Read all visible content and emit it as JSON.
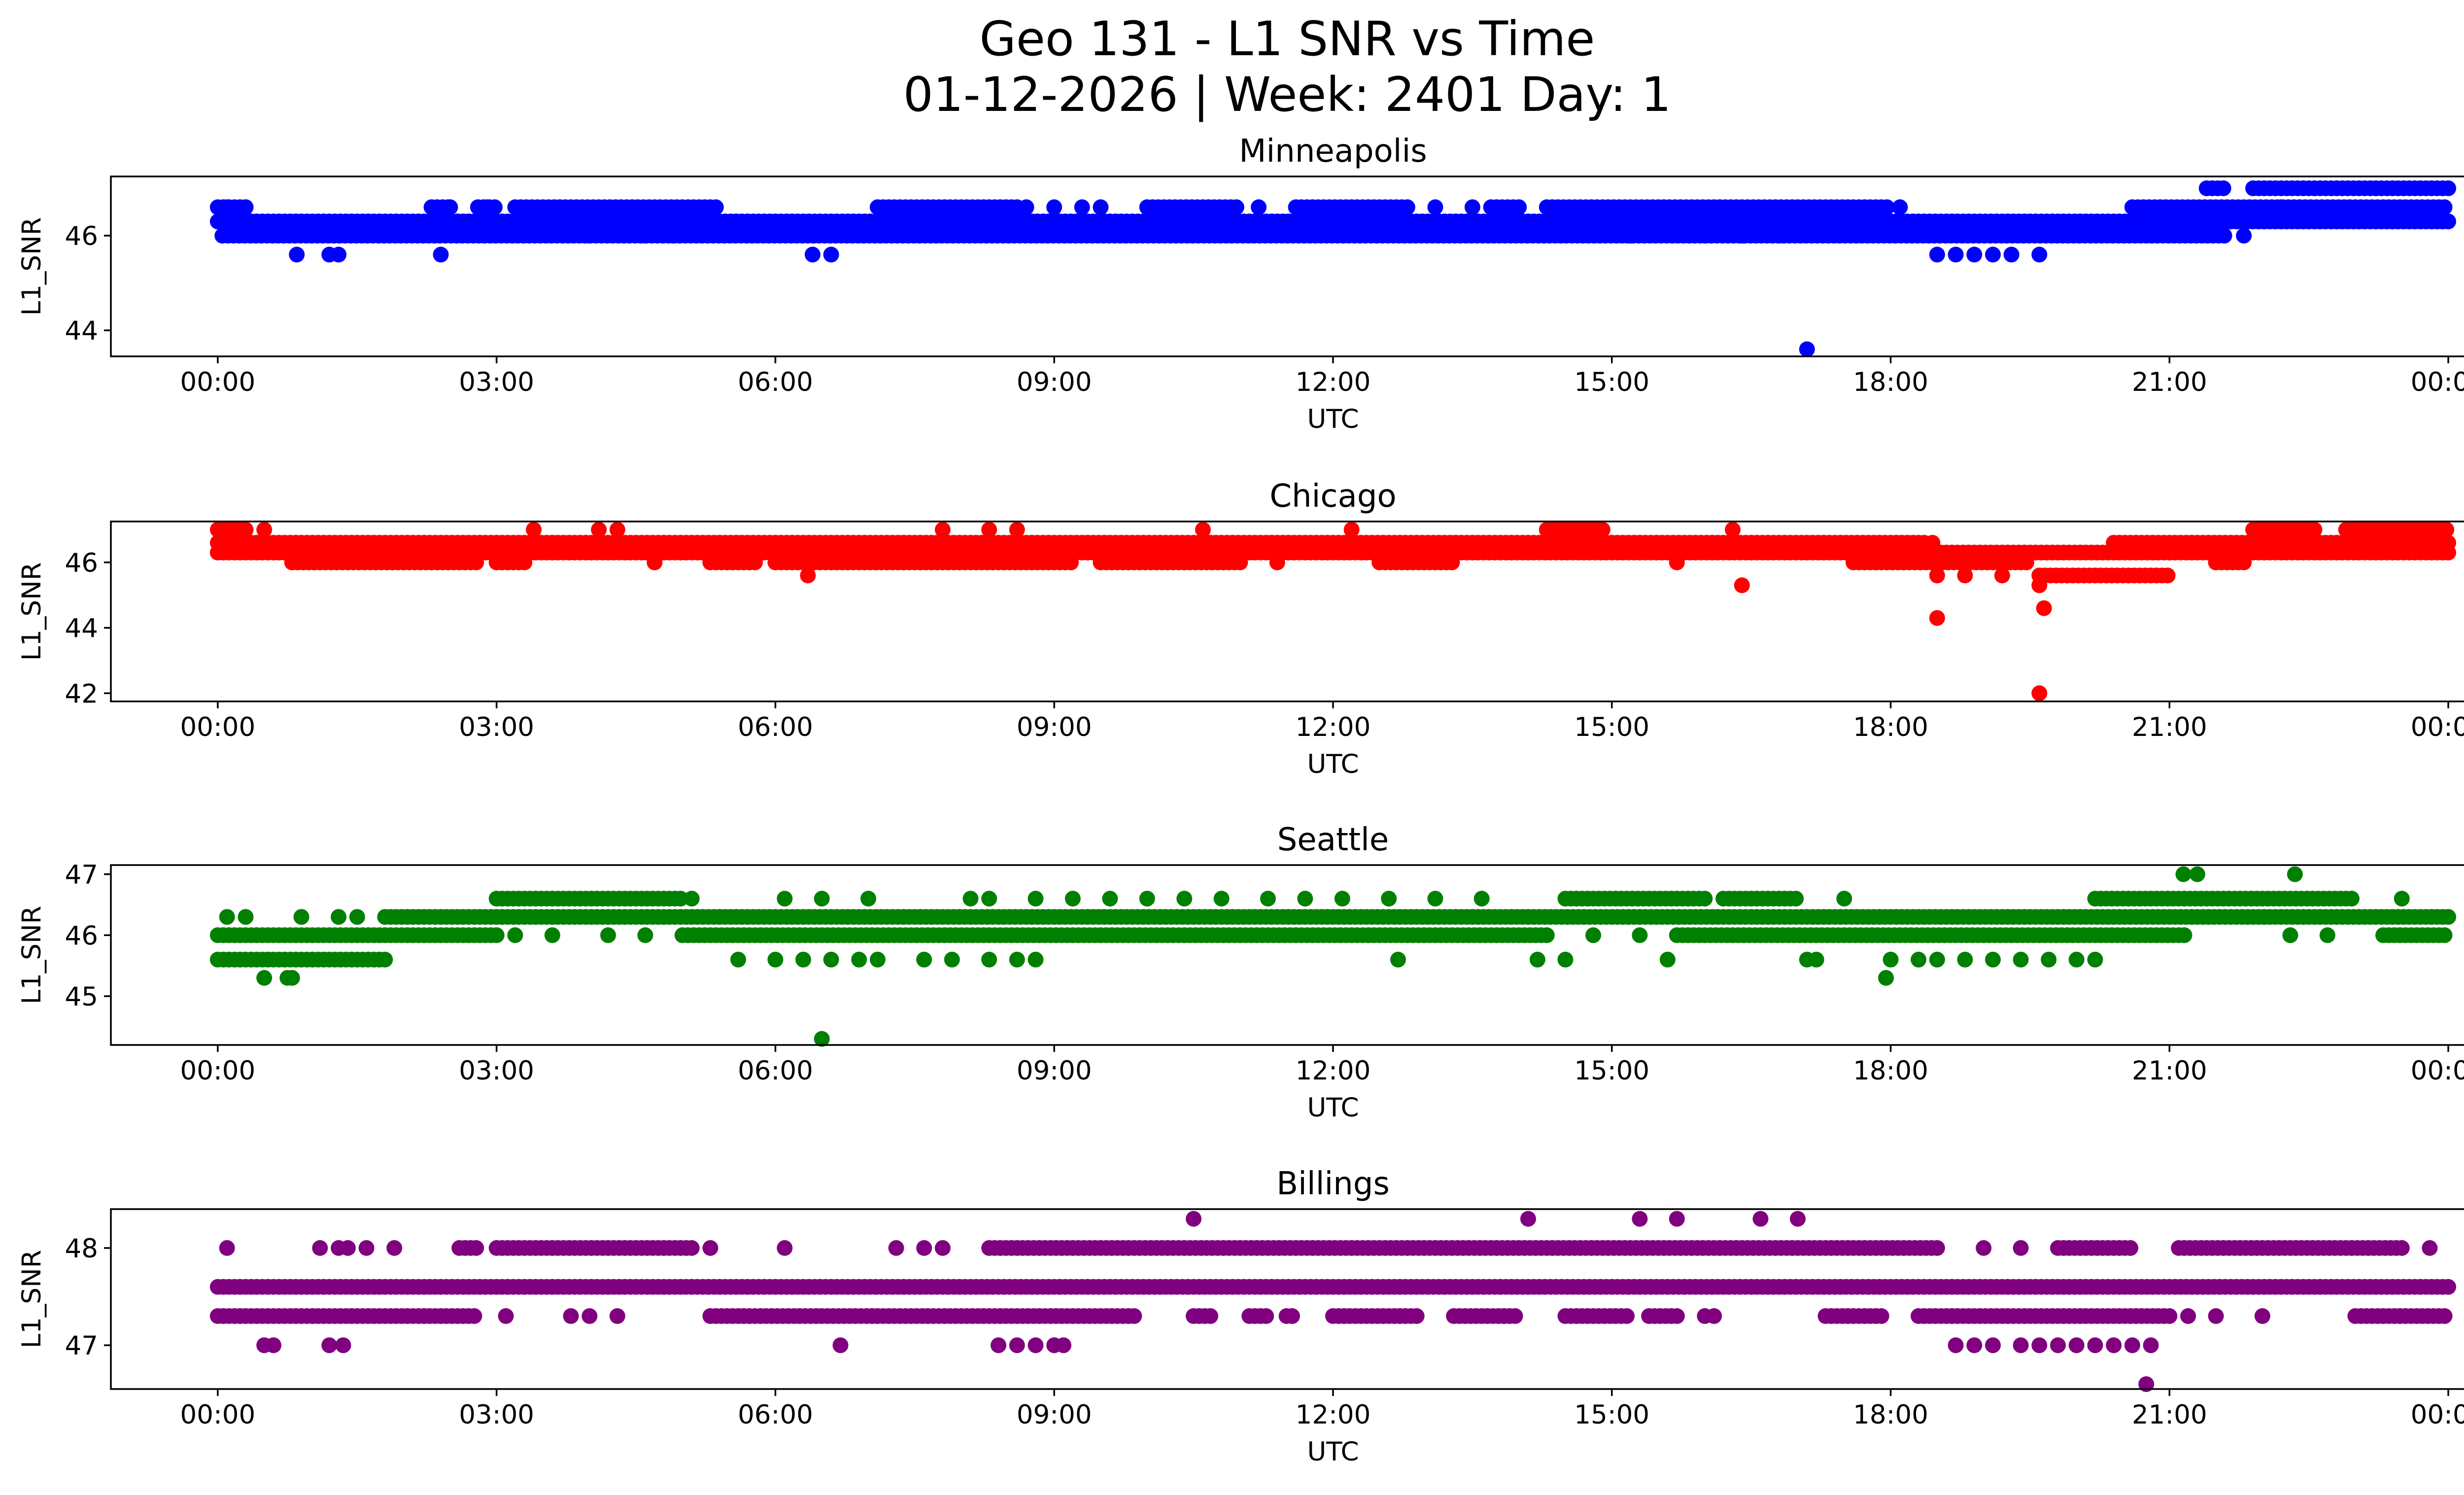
{
  "figure": {
    "title_line1": "Geo 131 - L1 SNR vs Time",
    "title_line2": "01-12-2026 | Week: 2401 Day: 1"
  },
  "chart_data": [
    {
      "type": "scatter",
      "title": "Minneapolis",
      "xlabel": "UTC",
      "ylabel": "L1_SNR",
      "color": "#0000ff",
      "xlim_hours": [
        -1.15,
        25.15
      ],
      "ylim": [
        43.45,
        47.25
      ],
      "xticks_hours": [
        0,
        3,
        6,
        9,
        12,
        15,
        18,
        21,
        24
      ],
      "xtick_labels": [
        "00:00",
        "03:00",
        "06:00",
        "09:00",
        "12:00",
        "15:00",
        "18:00",
        "21:00",
        "00:00"
      ],
      "yticks": [
        44,
        46
      ],
      "ytick_labels": [
        "44",
        "46"
      ],
      "bands": [
        {
          "y": 46.0,
          "segments": [
            [
              0.05,
              21.6
            ]
          ]
        },
        {
          "y": 46.3,
          "segments": [
            [
              0.0,
              24.0
            ]
          ]
        },
        {
          "y": 46.6,
          "segments": [
            [
              0.0,
              0.3
            ],
            [
              2.3,
              2.5
            ],
            [
              2.8,
              3.0
            ],
            [
              3.2,
              5.4
            ],
            [
              7.1,
              8.6
            ],
            [
              10.0,
              11.0
            ],
            [
              11.6,
              12.8
            ],
            [
              13.7,
              14.0
            ],
            [
              14.3,
              18.0
            ],
            [
              20.6,
              24.0
            ]
          ]
        },
        {
          "y": 47.0,
          "segments": [
            [
              21.4,
              21.6
            ],
            [
              21.9,
              24.0
            ]
          ]
        }
      ],
      "points": [
        {
          "x": 0.85,
          "y": 45.6
        },
        {
          "x": 1.2,
          "y": 45.6
        },
        {
          "x": 1.3,
          "y": 45.6
        },
        {
          "x": 2.4,
          "y": 45.6
        },
        {
          "x": 6.4,
          "y": 45.6
        },
        {
          "x": 6.6,
          "y": 45.6
        },
        {
          "x": 17.1,
          "y": 43.6
        },
        {
          "x": 18.5,
          "y": 45.6
        },
        {
          "x": 18.7,
          "y": 45.6
        },
        {
          "x": 18.9,
          "y": 45.6
        },
        {
          "x": 19.1,
          "y": 45.6
        },
        {
          "x": 19.3,
          "y": 45.6
        },
        {
          "x": 19.6,
          "y": 45.6
        },
        {
          "x": 4.0,
          "y": 46.0
        },
        {
          "x": 4.6,
          "y": 46.0
        },
        {
          "x": 4.9,
          "y": 46.0
        },
        {
          "x": 15.2,
          "y": 46.0
        },
        {
          "x": 16.0,
          "y": 46.0
        },
        {
          "x": 16.4,
          "y": 46.0
        },
        {
          "x": 16.8,
          "y": 46.0
        },
        {
          "x": 21.8,
          "y": 46.0
        },
        {
          "x": 0.1,
          "y": 46.6
        },
        {
          "x": 0.3,
          "y": 46.6
        },
        {
          "x": 2.5,
          "y": 46.6
        },
        {
          "x": 2.9,
          "y": 46.6
        },
        {
          "x": 8.7,
          "y": 46.6
        },
        {
          "x": 9.0,
          "y": 46.6
        },
        {
          "x": 9.3,
          "y": 46.6
        },
        {
          "x": 9.5,
          "y": 46.6
        },
        {
          "x": 11.2,
          "y": 46.6
        },
        {
          "x": 13.1,
          "y": 46.6
        },
        {
          "x": 13.5,
          "y": 46.6
        },
        {
          "x": 18.1,
          "y": 46.6
        },
        {
          "x": 22.2,
          "y": 46.6
        },
        {
          "x": 22.4,
          "y": 46.6
        },
        {
          "x": 22.7,
          "y": 46.6
        }
      ]
    },
    {
      "type": "scatter",
      "title": "Chicago",
      "xlabel": "UTC",
      "ylabel": "L1_SNR",
      "color": "#ff0000",
      "xlim_hours": [
        -1.15,
        25.15
      ],
      "ylim": [
        41.75,
        47.25
      ],
      "xticks_hours": [
        0,
        3,
        6,
        9,
        12,
        15,
        18,
        21,
        24
      ],
      "xtick_labels": [
        "00:00",
        "03:00",
        "06:00",
        "09:00",
        "12:00",
        "15:00",
        "18:00",
        "21:00",
        "00:00"
      ],
      "yticks": [
        42,
        44,
        46
      ],
      "ytick_labels": [
        "42",
        "44",
        "46"
      ],
      "bands": [
        {
          "y": 46.0,
          "segments": [
            [
              0.8,
              2.8
            ],
            [
              3.0,
              3.3
            ],
            [
              5.3,
              5.8
            ],
            [
              6.0,
              9.2
            ],
            [
              9.5,
              11.0
            ],
            [
              12.5,
              13.3
            ],
            [
              17.6,
              19.5
            ],
            [
              21.5,
              21.8
            ]
          ]
        },
        {
          "y": 46.3,
          "segments": [
            [
              0.0,
              24.0
            ]
          ]
        },
        {
          "y": 46.6,
          "segments": [
            [
              0.0,
              18.4
            ],
            [
              20.4,
              24.0
            ]
          ]
        },
        {
          "y": 47.0,
          "segments": [
            [
              0.0,
              0.3
            ],
            [
              14.3,
              14.9
            ],
            [
              21.9,
              22.6
            ],
            [
              22.9,
              24.0
            ]
          ]
        },
        {
          "y": 45.6,
          "segments": [
            [
              19.6,
              21.0
            ]
          ]
        }
      ],
      "points": [
        {
          "x": 0.5,
          "y": 47.0
        },
        {
          "x": 3.4,
          "y": 47.0
        },
        {
          "x": 4.1,
          "y": 47.0
        },
        {
          "x": 4.3,
          "y": 47.0
        },
        {
          "x": 7.8,
          "y": 47.0
        },
        {
          "x": 8.3,
          "y": 47.0
        },
        {
          "x": 8.6,
          "y": 47.0
        },
        {
          "x": 10.6,
          "y": 47.0
        },
        {
          "x": 12.2,
          "y": 47.0
        },
        {
          "x": 16.3,
          "y": 47.0
        },
        {
          "x": 6.35,
          "y": 45.6
        },
        {
          "x": 16.4,
          "y": 45.3
        },
        {
          "x": 18.5,
          "y": 44.3
        },
        {
          "x": 19.6,
          "y": 42.0
        },
        {
          "x": 19.65,
          "y": 44.6
        },
        {
          "x": 19.6,
          "y": 45.3
        },
        {
          "x": 18.5,
          "y": 45.6
        },
        {
          "x": 18.8,
          "y": 45.6
        },
        {
          "x": 19.2,
          "y": 45.6
        },
        {
          "x": 4.7,
          "y": 46.0
        },
        {
          "x": 11.4,
          "y": 46.0
        },
        {
          "x": 15.7,
          "y": 46.0
        },
        {
          "x": 18.45,
          "y": 46.6
        }
      ]
    },
    {
      "type": "scatter",
      "title": "Seattle",
      "xlabel": "UTC",
      "ylabel": "L1_SNR",
      "color": "#008000",
      "xlim_hours": [
        -1.15,
        25.15
      ],
      "ylim": [
        44.2,
        47.15
      ],
      "xticks_hours": [
        0,
        3,
        6,
        9,
        12,
        15,
        18,
        21,
        24
      ],
      "xtick_labels": [
        "00:00",
        "03:00",
        "06:00",
        "09:00",
        "12:00",
        "15:00",
        "18:00",
        "21:00",
        "00:00"
      ],
      "yticks": [
        45,
        46,
        47
      ],
      "ytick_labels": [
        "45",
        "46",
        "47"
      ],
      "bands": [
        {
          "y": 45.6,
          "segments": [
            [
              0.0,
              1.8
            ]
          ]
        },
        {
          "y": 46.0,
          "segments": [
            [
              0.0,
              3.0
            ],
            [
              5.0,
              14.3
            ],
            [
              15.7,
              21.2
            ],
            [
              23.3,
              24.0
            ]
          ]
        },
        {
          "y": 46.3,
          "segments": [
            [
              1.8,
              24.0
            ]
          ]
        },
        {
          "y": 46.6,
          "segments": [
            [
              3.0,
              5.0
            ],
            [
              14.5,
              16.0
            ],
            [
              16.2,
              17.0
            ],
            [
              20.2,
              23.0
            ]
          ]
        }
      ],
      "points": [
        {
          "x": 0.1,
          "y": 46.3
        },
        {
          "x": 0.3,
          "y": 46.3
        },
        {
          "x": 0.9,
          "y": 46.3
        },
        {
          "x": 1.3,
          "y": 46.3
        },
        {
          "x": 1.5,
          "y": 46.3
        },
        {
          "x": 0.5,
          "y": 45.3
        },
        {
          "x": 0.75,
          "y": 45.3
        },
        {
          "x": 0.8,
          "y": 45.3
        },
        {
          "x": 6.5,
          "y": 44.3
        },
        {
          "x": 3.2,
          "y": 46.0
        },
        {
          "x": 3.6,
          "y": 46.0
        },
        {
          "x": 4.2,
          "y": 46.0
        },
        {
          "x": 4.6,
          "y": 46.0
        },
        {
          "x": 14.8,
          "y": 46.0
        },
        {
          "x": 15.3,
          "y": 46.0
        },
        {
          "x": 22.3,
          "y": 46.0
        },
        {
          "x": 22.7,
          "y": 46.0
        },
        {
          "x": 5.1,
          "y": 46.6
        },
        {
          "x": 6.1,
          "y": 46.6
        },
        {
          "x": 6.5,
          "y": 46.6
        },
        {
          "x": 7.0,
          "y": 46.6
        },
        {
          "x": 8.1,
          "y": 46.6
        },
        {
          "x": 8.3,
          "y": 46.6
        },
        {
          "x": 8.8,
          "y": 46.6
        },
        {
          "x": 9.2,
          "y": 46.6
        },
        {
          "x": 9.6,
          "y": 46.6
        },
        {
          "x": 10.0,
          "y": 46.6
        },
        {
          "x": 10.4,
          "y": 46.6
        },
        {
          "x": 10.8,
          "y": 46.6
        },
        {
          "x": 11.3,
          "y": 46.6
        },
        {
          "x": 11.7,
          "y": 46.6
        },
        {
          "x": 12.1,
          "y": 46.6
        },
        {
          "x": 12.6,
          "y": 46.6
        },
        {
          "x": 13.1,
          "y": 46.6
        },
        {
          "x": 13.6,
          "y": 46.6
        },
        {
          "x": 17.5,
          "y": 46.6
        },
        {
          "x": 23.5,
          "y": 46.6
        },
        {
          "x": 5.6,
          "y": 45.6
        },
        {
          "x": 6.0,
          "y": 45.6
        },
        {
          "x": 6.3,
          "y": 45.6
        },
        {
          "x": 6.6,
          "y": 45.6
        },
        {
          "x": 6.9,
          "y": 45.6
        },
        {
          "x": 7.1,
          "y": 45.6
        },
        {
          "x": 7.6,
          "y": 45.6
        },
        {
          "x": 7.9,
          "y": 45.6
        },
        {
          "x": 8.3,
          "y": 45.6
        },
        {
          "x": 8.6,
          "y": 45.6
        },
        {
          "x": 8.8,
          "y": 45.6
        },
        {
          "x": 12.7,
          "y": 45.6
        },
        {
          "x": 14.2,
          "y": 45.6
        },
        {
          "x": 14.5,
          "y": 45.6
        },
        {
          "x": 15.6,
          "y": 45.6
        },
        {
          "x": 17.1,
          "y": 45.6
        },
        {
          "x": 17.2,
          "y": 45.6
        },
        {
          "x": 18.0,
          "y": 45.6
        },
        {
          "x": 18.3,
          "y": 45.6
        },
        {
          "x": 18.5,
          "y": 45.6
        },
        {
          "x": 18.8,
          "y": 45.6
        },
        {
          "x": 19.1,
          "y": 45.6
        },
        {
          "x": 19.4,
          "y": 45.6
        },
        {
          "x": 19.7,
          "y": 45.6
        },
        {
          "x": 20.0,
          "y": 45.6
        },
        {
          "x": 20.2,
          "y": 45.6
        },
        {
          "x": 17.95,
          "y": 45.3
        },
        {
          "x": 21.15,
          "y": 47.0
        },
        {
          "x": 21.3,
          "y": 47.0
        },
        {
          "x": 22.35,
          "y": 47.0
        }
      ]
    },
    {
      "type": "scatter",
      "title": "Billings",
      "xlabel": "UTC",
      "ylabel": "L1_SNR",
      "color": "#800080",
      "xlim_hours": [
        -1.15,
        25.15
      ],
      "ylim": [
        46.55,
        48.4
      ],
      "xticks_hours": [
        0,
        3,
        6,
        9,
        12,
        15,
        18,
        21,
        24
      ],
      "xtick_labels": [
        "00:00",
        "03:00",
        "06:00",
        "09:00",
        "12:00",
        "15:00",
        "18:00",
        "21:00",
        "00:00"
      ],
      "yticks": [
        47,
        48
      ],
      "ytick_labels": [
        "47",
        "48"
      ],
      "bands": [
        {
          "y": 47.3,
          "segments": [
            [
              0.0,
              2.8
            ],
            [
              5.3,
              9.9
            ],
            [
              10.5,
              10.7
            ],
            [
              11.1,
              11.3
            ],
            [
              11.5,
              11.6
            ],
            [
              12.0,
              12.9
            ],
            [
              13.3,
              14.0
            ],
            [
              14.5,
              15.2
            ],
            [
              15.4,
              15.7
            ],
            [
              17.3,
              17.9
            ],
            [
              18.3,
              21.0
            ],
            [
              23.0,
              24.0
            ]
          ]
        },
        {
          "y": 47.6,
          "segments": [
            [
              0.0,
              24.0
            ]
          ]
        },
        {
          "y": 48.0,
          "segments": [
            [
              2.6,
              2.8
            ],
            [
              3.0,
              5.1
            ],
            [
              8.3,
              18.5
            ],
            [
              19.8,
              20.6
            ],
            [
              21.1,
              23.5
            ]
          ]
        }
      ],
      "points": [
        {
          "x": 0.1,
          "y": 48.0
        },
        {
          "x": 1.1,
          "y": 48.0
        },
        {
          "x": 1.3,
          "y": 48.0
        },
        {
          "x": 1.4,
          "y": 48.0
        },
        {
          "x": 1.6,
          "y": 48.0
        },
        {
          "x": 1.9,
          "y": 48.0
        },
        {
          "x": 5.3,
          "y": 48.0
        },
        {
          "x": 6.1,
          "y": 48.0
        },
        {
          "x": 7.3,
          "y": 48.0
        },
        {
          "x": 7.6,
          "y": 48.0
        },
        {
          "x": 7.8,
          "y": 48.0
        },
        {
          "x": 19.0,
          "y": 48.0
        },
        {
          "x": 19.4,
          "y": 48.0
        },
        {
          "x": 23.8,
          "y": 48.0
        },
        {
          "x": 10.5,
          "y": 48.3
        },
        {
          "x": 14.1,
          "y": 48.3
        },
        {
          "x": 15.3,
          "y": 48.3
        },
        {
          "x": 15.7,
          "y": 48.3
        },
        {
          "x": 16.6,
          "y": 48.3
        },
        {
          "x": 17.0,
          "y": 48.3
        },
        {
          "x": 0.5,
          "y": 47.0
        },
        {
          "x": 0.6,
          "y": 47.0
        },
        {
          "x": 1.2,
          "y": 47.0
        },
        {
          "x": 1.35,
          "y": 47.0
        },
        {
          "x": 6.7,
          "y": 47.0
        },
        {
          "x": 8.4,
          "y": 47.0
        },
        {
          "x": 8.6,
          "y": 47.0
        },
        {
          "x": 8.8,
          "y": 47.0
        },
        {
          "x": 9.0,
          "y": 47.0
        },
        {
          "x": 9.1,
          "y": 47.0
        },
        {
          "x": 18.7,
          "y": 47.0
        },
        {
          "x": 18.9,
          "y": 47.0
        },
        {
          "x": 19.1,
          "y": 47.0
        },
        {
          "x": 19.4,
          "y": 47.0
        },
        {
          "x": 19.6,
          "y": 47.0
        },
        {
          "x": 19.8,
          "y": 47.0
        },
        {
          "x": 20.0,
          "y": 47.0
        },
        {
          "x": 20.2,
          "y": 47.0
        },
        {
          "x": 20.4,
          "y": 47.0
        },
        {
          "x": 20.6,
          "y": 47.0
        },
        {
          "x": 20.8,
          "y": 47.0
        },
        {
          "x": 20.75,
          "y": 46.6
        },
        {
          "x": 3.1,
          "y": 47.3
        },
        {
          "x": 3.8,
          "y": 47.3
        },
        {
          "x": 4.0,
          "y": 47.3
        },
        {
          "x": 4.3,
          "y": 47.3
        },
        {
          "x": 16.0,
          "y": 47.3
        },
        {
          "x": 16.1,
          "y": 47.3
        },
        {
          "x": 21.2,
          "y": 47.3
        },
        {
          "x": 21.5,
          "y": 47.3
        },
        {
          "x": 22.0,
          "y": 47.3
        }
      ]
    }
  ]
}
